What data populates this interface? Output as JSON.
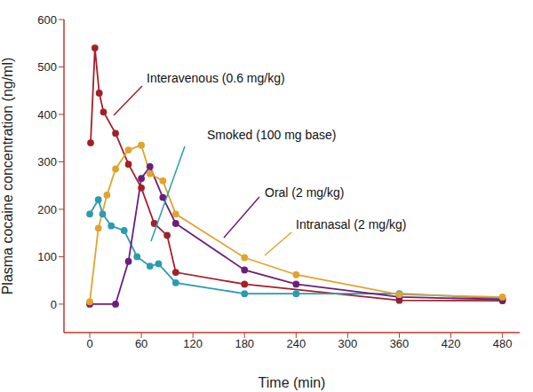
{
  "chart_data": {
    "type": "line",
    "x_label": "Time (min)",
    "y_label": "Plasma cocaine concentration (ng/ml)",
    "xlim": [
      -30,
      500
    ],
    "xticks": [
      0,
      60,
      120,
      180,
      240,
      300,
      360,
      420,
      480
    ],
    "ylim": [
      -60,
      600
    ],
    "yticks": [
      0,
      100,
      200,
      300,
      400,
      500,
      600
    ],
    "grid": false,
    "marker": "circle",
    "series": [
      {
        "name": "Interavenous (0.6 mg/kg)",
        "color": "#a3202a",
        "x": [
          1,
          6,
          11,
          16,
          30,
          45,
          60,
          75,
          90,
          100,
          180,
          360,
          480
        ],
        "values": [
          340,
          540,
          445,
          405,
          360,
          295,
          245,
          170,
          145,
          67,
          42,
          8,
          7
        ]
      },
      {
        "name": "Smoked (100 mg base)",
        "color": "#2a9cb0",
        "x": [
          0,
          10,
          15,
          25,
          40,
          55,
          70,
          80,
          100,
          180,
          240,
          360,
          480
        ],
        "values": [
          190,
          220,
          190,
          165,
          155,
          100,
          80,
          85,
          45,
          22,
          22,
          22,
          12
        ]
      },
      {
        "name": "Oral (2 mg/kg)",
        "color": "#6b1f7c",
        "x": [
          0,
          30,
          45,
          60,
          70,
          85,
          100,
          180,
          240,
          360,
          480
        ],
        "values": [
          0,
          0,
          90,
          265,
          290,
          225,
          170,
          72,
          42,
          15,
          10
        ]
      },
      {
        "name": "Intranasal (2 mg/kg)",
        "color": "#e2a32e",
        "x": [
          0,
          10,
          20,
          30,
          45,
          60,
          70,
          85,
          100,
          180,
          240,
          360,
          480
        ],
        "values": [
          5,
          160,
          230,
          285,
          325,
          335,
          275,
          260,
          190,
          98,
          62,
          20,
          15
        ]
      }
    ]
  }
}
